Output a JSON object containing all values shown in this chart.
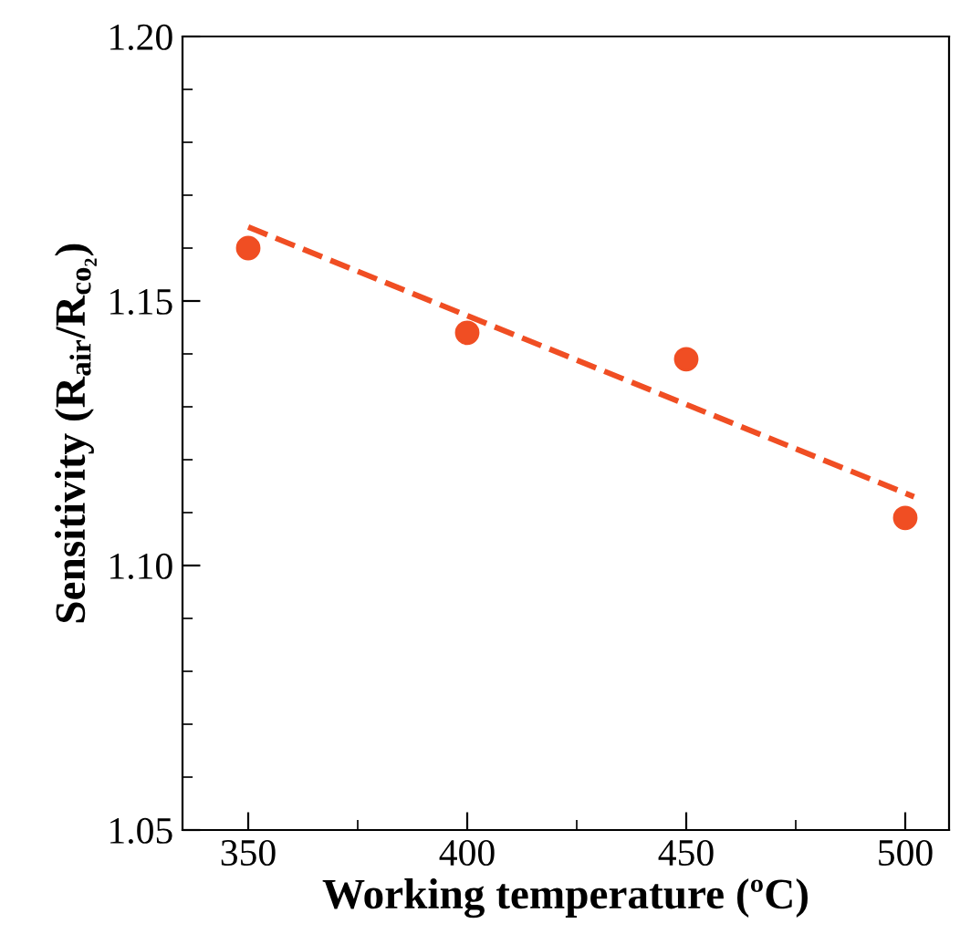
{
  "chart_data": {
    "type": "scatter",
    "xlabel": "Working temperature (ºC)",
    "ylabel": "Sensitivity (R$_{air}$/R$_{co₂}$)",
    "x": [
      350,
      400,
      450,
      500
    ],
    "series": [
      {
        "color": "#f04e23",
        "values": [
          1.16,
          1.144,
          1.139,
          1.109
        ],
        "marker": "circle"
      },
      {
        "type": "line",
        "color": "#f04e23",
        "x": [
          350,
          502
        ],
        "values": [
          1.164,
          1.113
        ],
        "line_style": "dashed",
        "marker": "none"
      }
    ],
    "xlim": [
      335,
      510
    ],
    "ylim": [
      1.05,
      1.2
    ],
    "xticks": [
      350,
      400,
      450,
      500
    ],
    "yticks": [
      {
        "value": 1.05,
        "label": "1.05"
      },
      {
        "value": 1.1,
        "label": "1.10"
      },
      {
        "value": 1.15,
        "label": "1.15"
      },
      {
        "value": 1.2,
        "label": "1.20"
      }
    ],
    "grid": false,
    "legend": false
  }
}
